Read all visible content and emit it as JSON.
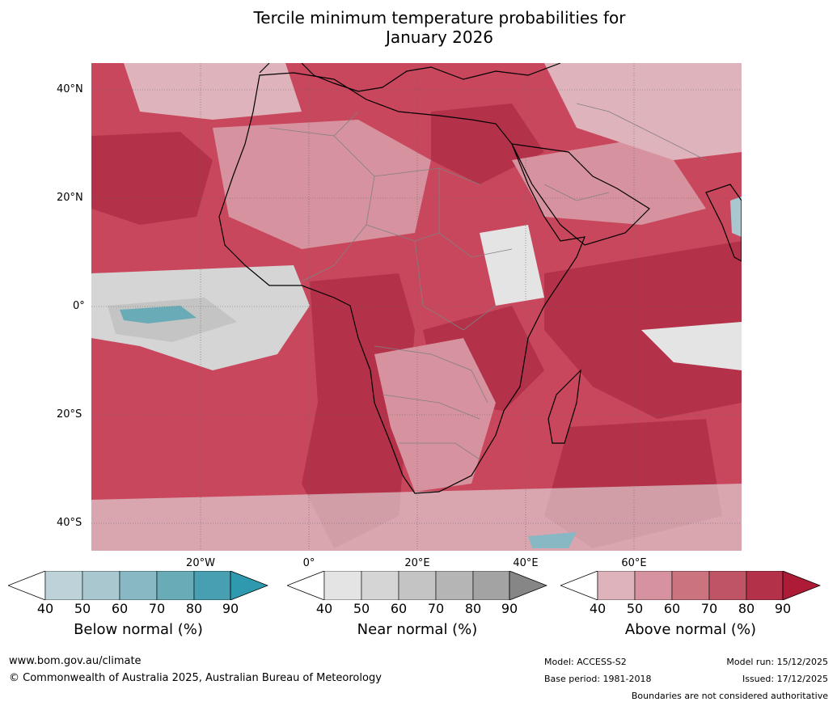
{
  "title_line1": "Tercile minimum temperature probabilities for",
  "title_line2": "January 2026",
  "map": {
    "lat_labels": [
      "40°N",
      "20°N",
      "0°",
      "20°S",
      "40°S"
    ],
    "lon_labels": [
      "20°W",
      "0°",
      "20°E",
      "40°E",
      "60°E"
    ],
    "colors": {
      "above": [
        "#dfb3bb",
        "#d6929e",
        "#cb747f",
        "#c05467",
        "#b3324a",
        "#ad1b37"
      ],
      "near": [
        "#e4e4e4",
        "#d5d5d5",
        "#c4c4c4",
        "#b5b5b5",
        "#a3a3a3",
        "#868686"
      ],
      "below": [
        "#bed3d9",
        "#a8c7ce",
        "#88b8c3",
        "#6aabb8",
        "#489fb1",
        "#2f9aaf"
      ],
      "ocean_base": "#c73a52",
      "land_border": "#808080",
      "coastline": "#000000"
    }
  },
  "colorbars": {
    "ticks": [
      "40",
      "50",
      "60",
      "70",
      "80",
      "90"
    ],
    "below_label": "Below normal (%)",
    "near_label": "Near normal (%)",
    "above_label": "Above normal (%)"
  },
  "footer": {
    "website": "www.bom.gov.au/climate",
    "copyright": "© Commonwealth of Australia 2025, Australian Bureau of Meteorology",
    "model": "Model: ACCESS-S2",
    "base_period": "Base period: 1981-2018",
    "model_run": "Model run: 15/12/2025",
    "issued": "Issued: 17/12/2025",
    "disclaimer": "Boundaries are not considered authoritative"
  }
}
